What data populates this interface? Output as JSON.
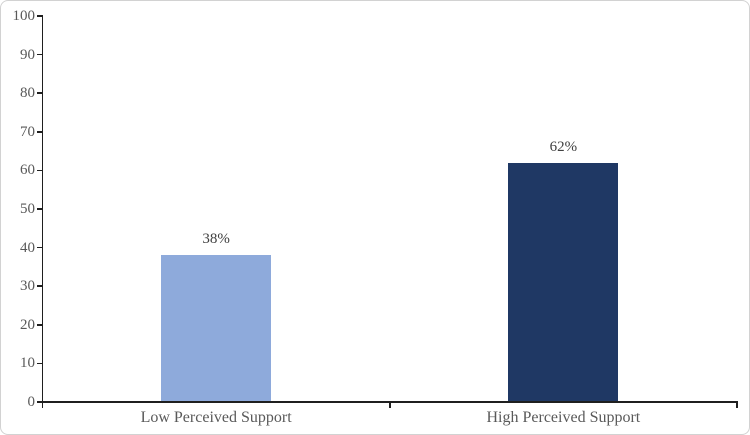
{
  "chart_data": {
    "type": "bar",
    "title": "",
    "xlabel": "",
    "ylabel": "",
    "categories": [
      "Low Perceived Support",
      "High Perceived Support"
    ],
    "values": [
      38,
      62
    ],
    "data_labels": [
      "38%",
      "62%"
    ],
    "bar_colors": [
      "#8EAADB",
      "#1F3864"
    ],
    "ylim": [
      0,
      100
    ],
    "ytick_step": 10,
    "ytick_labels": [
      "0",
      "10",
      "20",
      "30",
      "40",
      "50",
      "60",
      "70",
      "80",
      "90",
      "100"
    ],
    "grid": false,
    "legend": false,
    "colors": {
      "axis": "#1f1f1f",
      "tick_label": "#595959",
      "category_label": "#595959",
      "data_label": "#404040",
      "background": "#ffffff",
      "frame_border": "#d2d2d2"
    }
  }
}
